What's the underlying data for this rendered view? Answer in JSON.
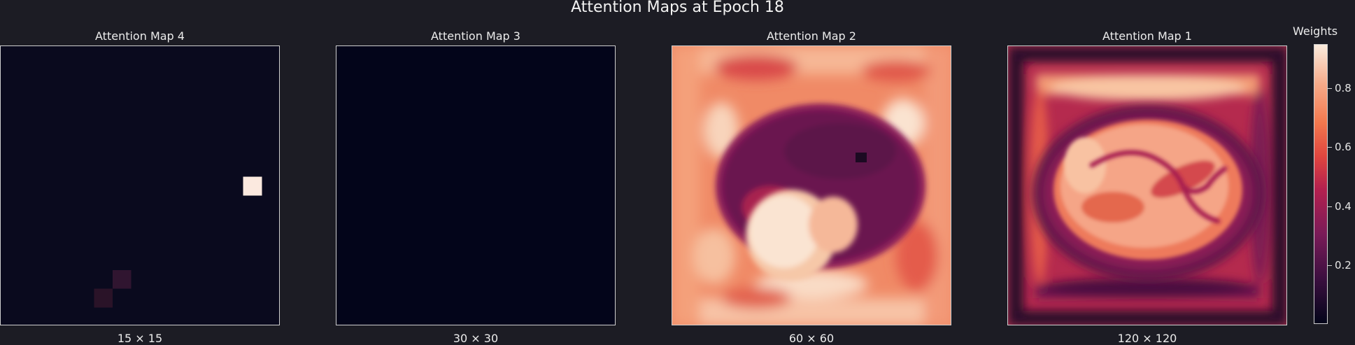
{
  "figure": {
    "title": "Attention Maps at Epoch 18"
  },
  "panels": [
    {
      "title": "Attention Map 4",
      "size_label": "15 × 15"
    },
    {
      "title": "Attention Map 3",
      "size_label": "30 × 30"
    },
    {
      "title": "Attention Map 2",
      "size_label": "60 × 60"
    },
    {
      "title": "Attention Map 1",
      "size_label": "120 × 120"
    }
  ],
  "colorbar": {
    "title": "Weights",
    "ticks": [
      "0.2",
      "0.4",
      "0.6",
      "0.8"
    ]
  },
  "colors": {
    "background": "#1c1c24",
    "low": "#03051a",
    "high": "#faebdd"
  },
  "chart_data": {
    "type": "heatmap",
    "title": "Attention Maps at Epoch 18",
    "colormap": "rocket",
    "vlim": [
      0.0,
      0.95
    ],
    "maps": [
      {
        "name": "Attention Map 4",
        "grid": [
          15,
          15
        ],
        "background_value": 0.02,
        "hot_cells": [
          {
            "row": 7,
            "col": 13,
            "value": 0.95
          },
          {
            "row": 12,
            "col": 6,
            "value": 0.12
          },
          {
            "row": 13,
            "col": 5,
            "value": 0.1
          }
        ]
      },
      {
        "name": "Attention Map 3",
        "grid": [
          30,
          30
        ],
        "background_value": 0.0
      },
      {
        "name": "Attention Map 2",
        "grid": [
          60,
          60
        ],
        "pattern": "bright border, dark ring around bright lower-left blob"
      },
      {
        "name": "Attention Map 1",
        "grid": [
          120,
          120
        ],
        "pattern": "dark frame, bright organ-shaped region with dark inner curves"
      }
    ]
  }
}
